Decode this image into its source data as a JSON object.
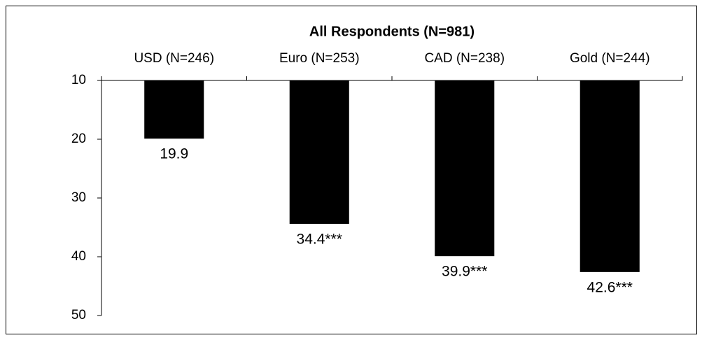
{
  "chart_data": {
    "type": "bar",
    "title": "All Respondents (N=981)",
    "categories": [
      "USD (N=246)",
      "Euro (N=253)",
      "CAD (N=238)",
      "Gold (N=244)"
    ],
    "values": [
      19.9,
      34.4,
      39.9,
      42.6
    ],
    "value_labels": [
      "19.9",
      "34.4***",
      "39.9***",
      "42.6***"
    ],
    "color": "#000000",
    "ylim": [
      50,
      10
    ],
    "yticks": [
      10,
      20,
      30,
      40,
      50
    ],
    "grid": false
  }
}
